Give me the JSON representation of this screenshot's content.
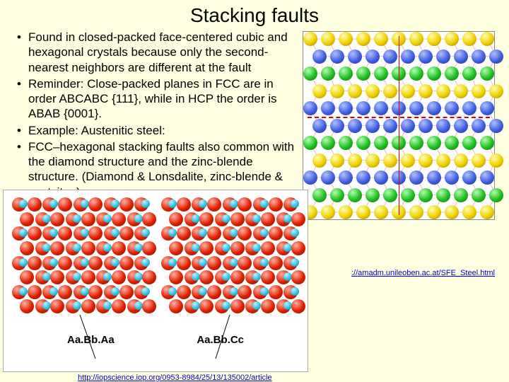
{
  "title": "Stacking faults",
  "bullets": [
    "Found in closed-packed face-centered cubic and hexagonal crystals because only the second-nearest neighbors are different at the fault",
    "Reminder: Close-packed planes in FCC are in order ABCABC {111}, while in HCP the order is ABAB {0001}.",
    "Example: Austenitic steel:",
    "FCC–hexagonal stacking faults also common with the diamond structure and the zinc-blende structure.  (Diamond & Lonsdalite, zinc-blende & wurtzite. )"
  ],
  "link_right": "://amadm.unileoben.ac.at/SFE_Steel.html",
  "link_bottom": "http://iopscience.iop.org/0953-8984/25/13/135002/article",
  "bottom_figure": {
    "label_left": "Aa.Bb.Aa",
    "label_right": "Aa.Bb.Cc",
    "rows": 8,
    "cols": 9,
    "red_color": "#e02000",
    "cyan_color": "#30c0e0",
    "bg": "#ffffff"
  },
  "right_figure": {
    "rows": 11,
    "cols": 11,
    "dash_row": 5,
    "colors": {
      "y": "#f0d000",
      "g": "#20c020",
      "b": "#4060e0"
    },
    "pattern_top": [
      "y",
      "b",
      "g"
    ],
    "pattern_bot": [
      "g",
      "y",
      "b"
    ],
    "bg": "#ffffff"
  },
  "slide_bg": "#feffe0"
}
